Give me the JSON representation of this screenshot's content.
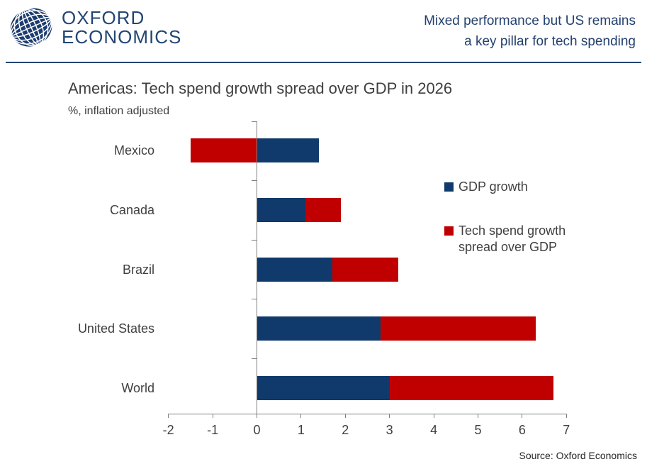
{
  "header": {
    "logo_line1": "OXFORD",
    "logo_line2": "ECONOMICS",
    "headline_line1": "Mixed performance but US remains",
    "headline_line2": "a key pillar for tech spending"
  },
  "chart": {
    "title": "Americas: Tech spend growth spread over GDP in 2026",
    "subtitle": "%, inflation adjusted",
    "source": "Source: Oxford Economics"
  },
  "chart_data": {
    "type": "bar",
    "orientation": "horizontal",
    "stacked": true,
    "title": "Americas: Tech spend growth spread over GDP in 2026",
    "subtitle": "%, inflation adjusted",
    "categories": [
      "Mexico",
      "Canada",
      "Brazil",
      "United States",
      "World"
    ],
    "series": [
      {
        "name": "GDP growth",
        "color": "#0F3A6B",
        "values": [
          1.4,
          1.1,
          1.7,
          2.8,
          3.0
        ]
      },
      {
        "name": "Tech spend growth spread over GDP",
        "color": "#C00000",
        "values": [
          -1.5,
          0.8,
          1.5,
          3.5,
          3.7
        ]
      }
    ],
    "totals_tech_spend_growth": [
      -0.1,
      1.9,
      3.2,
      6.3,
      6.7
    ],
    "xlim": [
      -2,
      7
    ],
    "x_ticks": [
      -2,
      -1,
      0,
      1,
      2,
      3,
      4,
      5,
      6,
      7
    ],
    "grid": false,
    "legend_position": "right",
    "legend": [
      {
        "label_lines": [
          "GDP growth"
        ],
        "color": "#0F3A6B"
      },
      {
        "label_lines": [
          "Tech spend growth",
          "spread over GDP"
        ],
        "color": "#C00000"
      }
    ]
  },
  "colors": {
    "brand_navy": "#234574",
    "bar_blue": "#0F3A6B",
    "bar_red": "#C00000",
    "text_gray": "#404040",
    "axis_gray": "#808080",
    "source_black": "#262626"
  }
}
